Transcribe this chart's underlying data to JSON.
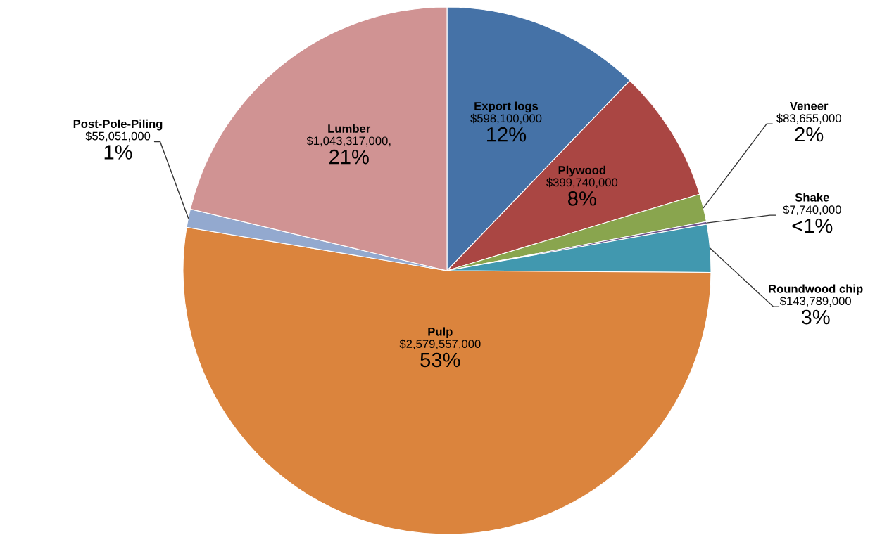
{
  "chart_data": {
    "type": "pie",
    "categories": [
      "Export logs",
      "Plywood",
      "Veneer",
      "Shake",
      "Roundwood chip",
      "Pulp",
      "Post-Pole-Piling",
      "Lumber"
    ],
    "values": [
      598100000,
      399740000,
      83655000,
      7740000,
      143789000,
      2579557000,
      55051000,
      1043317000
    ],
    "colors": [
      "#4572a7",
      "#aa4643",
      "#89a54e",
      "#71588f",
      "#4198af",
      "#db843d",
      "#93a9cf",
      "#d09393"
    ],
    "value_labels": [
      "$598,100,000\n12%",
      "$399,740,000\n8%",
      "$83,655,000\n2%",
      "$7,740,000\n<1%",
      "$143,789,000\n3%",
      "$2,579,557,000\n53%",
      "$55,051,000\n1%",
      "$1,043,317,000,\n21%"
    ],
    "legend": false
  }
}
